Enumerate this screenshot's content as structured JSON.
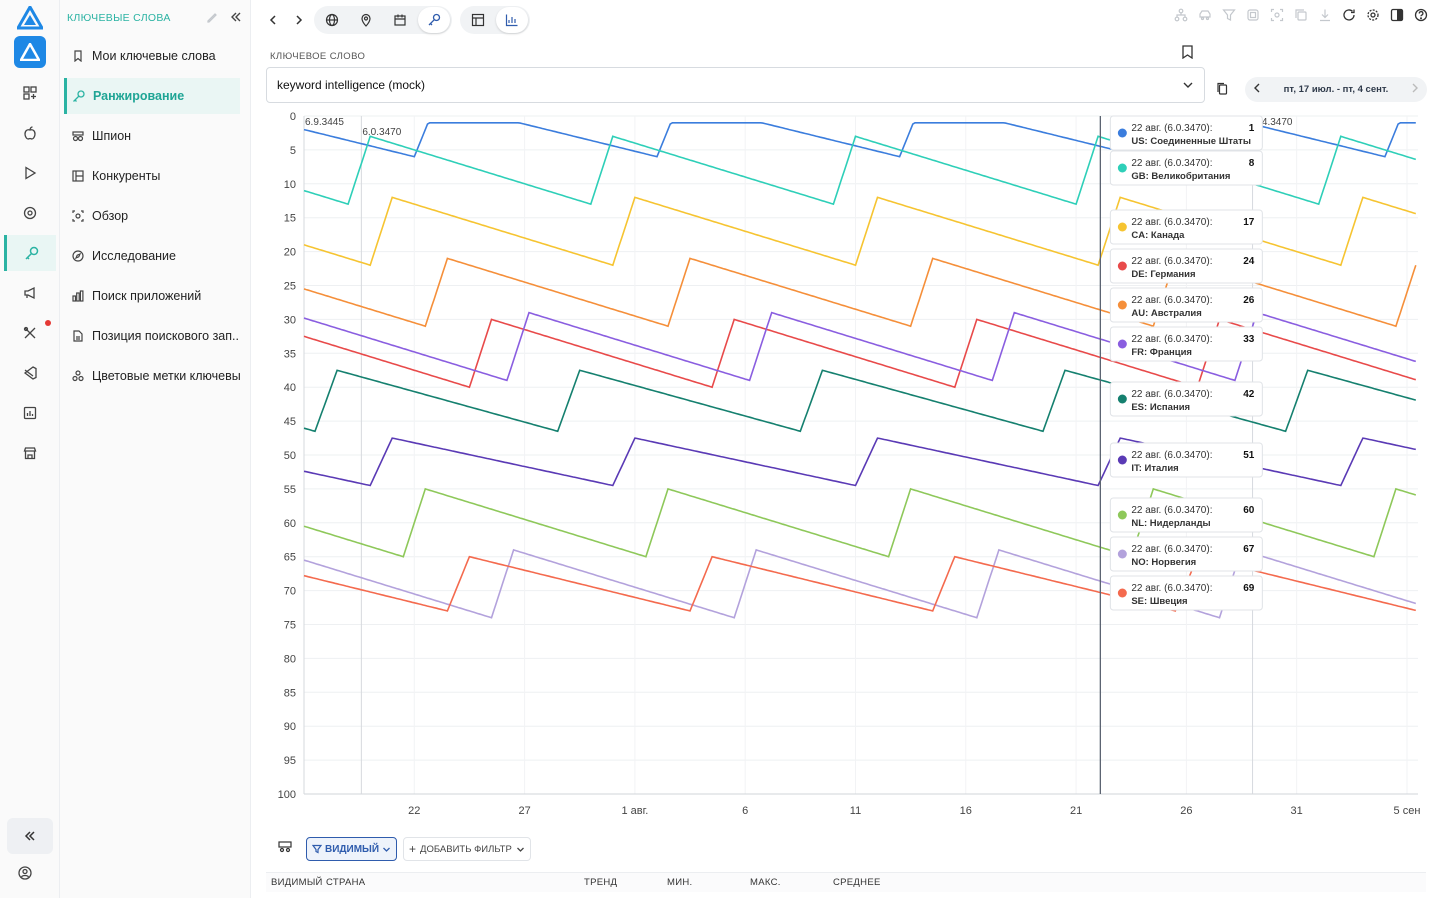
{
  "sidebar": {
    "title": "КЛЮЧЕВЫЕ СЛОВА",
    "items": [
      {
        "label": "Мои ключевые слова",
        "icon": "bookmark-icon"
      },
      {
        "label": "Ранжирование",
        "icon": "key-icon",
        "active": true
      },
      {
        "label": "Шпион",
        "icon": "spy-icon"
      },
      {
        "label": "Конкуренты",
        "icon": "competitors-icon"
      },
      {
        "label": "Обзор",
        "icon": "overview-icon"
      },
      {
        "label": "Исследование",
        "icon": "compass-icon"
      },
      {
        "label": "Поиск приложений",
        "icon": "bar-chart-icon"
      },
      {
        "label": "Позиция поискового зап...",
        "icon": "document-icon"
      },
      {
        "label": "Цветовые метки ключевы...",
        "icon": "color-tags-icon"
      }
    ]
  },
  "keyword": {
    "label": "КЛЮЧЕВОЕ СЛОВО",
    "value": "keyword intelligence (mock)"
  },
  "date_range": "пт, 17 июл. - пт, 4 сент.",
  "filters": {
    "visible_label": "ВИДИМЫЙ",
    "add_label": "ДОБАВИТЬ ФИЛЬТР"
  },
  "table": {
    "columns": [
      "ВИДИМЫЙ",
      "СТРАНА",
      "ТРЕНД",
      "МИН.",
      "МАКС.",
      "СРЕДНЕЕ"
    ]
  },
  "colors": {
    "accent": "#2bb3a3",
    "cursor_line": "#5b6472"
  },
  "chart_data": {
    "type": "line",
    "y_axis": {
      "min": 0,
      "max": 100,
      "inverted": true,
      "ticks": [
        0,
        5,
        10,
        15,
        20,
        25,
        30,
        35,
        40,
        45,
        50,
        55,
        60,
        65,
        70,
        75,
        80,
        85,
        90,
        95,
        100
      ]
    },
    "x_axis": {
      "start": "17 июл.",
      "end": "5 сен",
      "tick_labels": [
        "22",
        "27",
        "1 авг.",
        "6",
        "11",
        "16",
        "21",
        "26",
        "31",
        "5 сен"
      ],
      "tick_days": [
        5,
        10,
        15,
        20,
        25,
        30,
        35,
        40,
        45,
        50
      ]
    },
    "version_markers": [
      {
        "label": "6.9.3445",
        "day": 0
      },
      {
        "label": "6.0.3470",
        "day": 2.6
      },
      {
        "label": "6.4.3470",
        "day": 43
      }
    ],
    "cursor_day": 36.1,
    "tooltip_date": "22 авг. (6.0.3470):",
    "period_days": 11,
    "series": [
      {
        "name": "US: Соединенные Штаты",
        "color": "#3b7ddd",
        "start": 2,
        "amplitude": 8,
        "phase": 5,
        "value_at_cursor": 1
      },
      {
        "name": "GB: Великобритания",
        "color": "#2ecfb8",
        "start": 8,
        "amplitude": 10,
        "phase": 8,
        "value_at_cursor": 8
      },
      {
        "name": "CA: Канада",
        "color": "#f6c431",
        "start": 17,
        "amplitude": 10,
        "phase": 7,
        "value_at_cursor": 17
      },
      {
        "name": "DE: Германия",
        "color": "#e84a4a",
        "start": 35,
        "amplitude": 10,
        "phase": 2.5,
        "value_at_cursor": 24
      },
      {
        "name": "AU: Австралия",
        "color": "#f58f3a",
        "start": 26,
        "amplitude": 10,
        "phase": 4.5,
        "value_at_cursor": 26
      },
      {
        "name": "FR: Франция",
        "color": "#8a5ee0",
        "start": 34,
        "amplitude": 10,
        "phase": 0.8,
        "value_at_cursor": 33
      },
      {
        "name": "ES: Испания",
        "color": "#15806f",
        "start": 42,
        "amplitude": 9,
        "phase": 9.5,
        "value_at_cursor": 42
      },
      {
        "name": "IT: Италия",
        "color": "#5a3ab5",
        "start": 51,
        "amplitude": 7,
        "phase": 7,
        "value_at_cursor": 51
      },
      {
        "name": "NL: Нидерланды",
        "color": "#8ec85a",
        "start": 60,
        "amplitude": 10,
        "phase": 5.5,
        "value_at_cursor": 60
      },
      {
        "name": "NO: Норвегия",
        "color": "#b3a2dc",
        "start": 69,
        "amplitude": 10,
        "phase": 1.5,
        "value_at_cursor": 67
      },
      {
        "name": "SE: Швеция",
        "color": "#f46a4e",
        "start": 69,
        "amplitude": 8,
        "phase": 3.5,
        "value_at_cursor": 69
      }
    ]
  }
}
